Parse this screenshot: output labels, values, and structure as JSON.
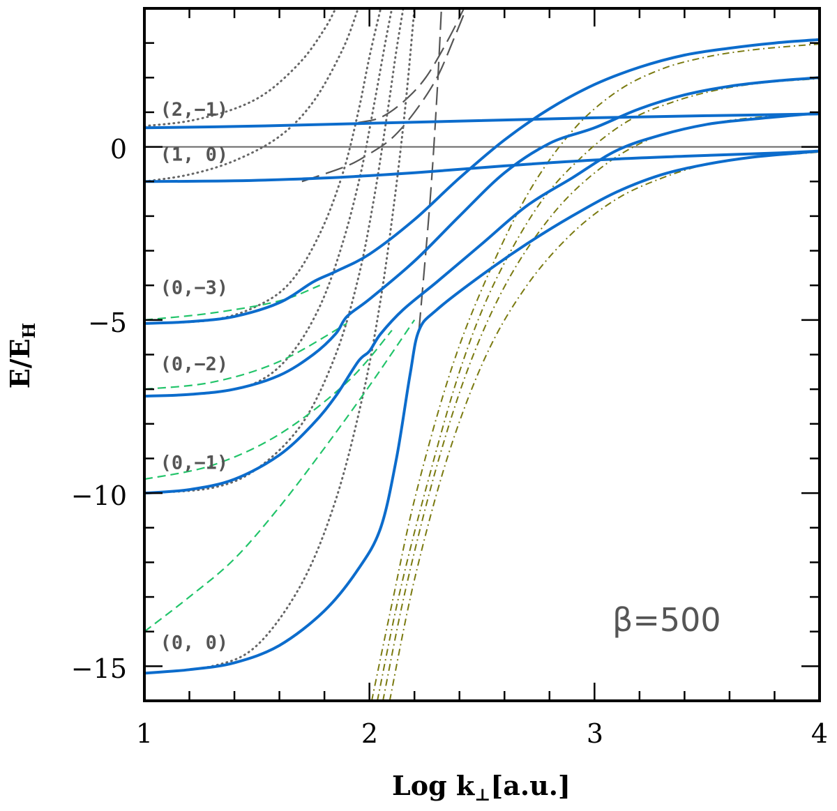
{
  "chart_data": {
    "type": "line",
    "title": "",
    "xlabel": "Log k",
    "xlabel_sub": "⊥",
    "xlabel_unit": "[a.u.]",
    "ylabel": "E/E",
    "ylabel_sub": "H",
    "xlim": [
      1,
      4
    ],
    "ylim": [
      -16,
      4
    ],
    "x_ticks": [
      1,
      2,
      3,
      4
    ],
    "x_tick_labels": [
      "1",
      "2",
      "3",
      "4"
    ],
    "y_ticks": [
      -15,
      -10,
      -5,
      0
    ],
    "y_tick_labels": [
      "−15",
      "−10",
      "−5",
      "0"
    ],
    "annotation": "β=500",
    "state_labels": [
      {
        "text": "(2,−1)",
        "x": 1.07,
        "y": 0.9
      },
      {
        "text": "(1, 0)",
        "x": 1.07,
        "y": -0.4
      },
      {
        "text": "(0,−3)",
        "x": 1.07,
        "y": -4.25
      },
      {
        "text": "(0,−2)",
        "x": 1.07,
        "y": -6.45
      },
      {
        "text": "(0,−1)",
        "x": 1.07,
        "y": -9.3
      },
      {
        "text": "(0, 0)",
        "x": 1.07,
        "y": -14.5
      }
    ],
    "colors": {
      "solid": "#0c6ccc",
      "green": "#22c46a",
      "dotted": "#666666",
      "dashed": "#555555",
      "dashdot": "#7a7a10",
      "zero_line": "#666666"
    },
    "series": [
      {
        "name": "blue-solid-1",
        "style": "solid",
        "x": [
          1,
          1.5,
          2,
          2.5,
          3,
          3.5,
          4
        ],
        "y": [
          0.55,
          0.6,
          0.68,
          0.76,
          0.84,
          0.9,
          0.95
        ]
      },
      {
        "name": "blue-solid-2",
        "style": "solid",
        "x": [
          1,
          1.4,
          1.8,
          2.2,
          2.6,
          3,
          3.4,
          3.8,
          4
        ],
        "y": [
          -1,
          -0.98,
          -0.9,
          -0.75,
          -0.55,
          -0.38,
          -0.27,
          -0.18,
          -0.12
        ]
      },
      {
        "name": "blue-solid-3",
        "style": "solid",
        "x": [
          1,
          1.2,
          1.4,
          1.6,
          1.75,
          1.85,
          2,
          2.2,
          2.4,
          2.6,
          2.8,
          3,
          3.2,
          3.4,
          3.6,
          3.8,
          4
        ],
        "y": [
          -5.1,
          -5.05,
          -4.9,
          -4.5,
          -3.9,
          -3.6,
          -3.1,
          -2.1,
          -0.9,
          0.2,
          1.1,
          1.8,
          2.3,
          2.65,
          2.85,
          3.0,
          3.1
        ]
      },
      {
        "name": "blue-solid-4",
        "style": "solid",
        "x": [
          1,
          1.2,
          1.4,
          1.6,
          1.75,
          1.85,
          1.9,
          2,
          2.2,
          2.4,
          2.6,
          2.8,
          3,
          3.2,
          3.4,
          3.6,
          3.8,
          4
        ],
        "y": [
          -7.2,
          -7.15,
          -7.0,
          -6.6,
          -6.0,
          -5.4,
          -4.9,
          -4.4,
          -3.3,
          -2.0,
          -0.75,
          0.1,
          0.55,
          1.1,
          1.5,
          1.75,
          1.9,
          2.0
        ]
      },
      {
        "name": "blue-solid-5",
        "style": "solid",
        "x": [
          1,
          1.2,
          1.4,
          1.6,
          1.75,
          1.85,
          1.95,
          2,
          2.05,
          2.15,
          2.3,
          2.5,
          2.7,
          2.9,
          3.1,
          3.3,
          3.5,
          3.7,
          3.9,
          4
        ],
        "y": [
          -10,
          -9.9,
          -9.6,
          -8.9,
          -8.0,
          -7.2,
          -6.2,
          -5.9,
          -5.4,
          -4.7,
          -3.9,
          -2.8,
          -1.7,
          -0.9,
          -0.1,
          0.35,
          0.65,
          0.8,
          0.92,
          0.98
        ]
      },
      {
        "name": "blue-solid-6",
        "style": "solid",
        "x": [
          1,
          1.2,
          1.4,
          1.6,
          1.8,
          1.95,
          2.05,
          2.12,
          2.18,
          2.22,
          2.3,
          2.5,
          2.7,
          2.9,
          3.1,
          3.3,
          3.5,
          3.7,
          3.9,
          4
        ],
        "y": [
          -15.2,
          -15.1,
          -14.9,
          -14.4,
          -13.4,
          -12.2,
          -11.0,
          -9.0,
          -6.6,
          -5.3,
          -4.7,
          -3.7,
          -2.8,
          -2.0,
          -1.3,
          -0.8,
          -0.5,
          -0.3,
          -0.18,
          -0.12
        ]
      },
      {
        "name": "green-dashed-1",
        "style": "green",
        "x": [
          1,
          1.3,
          1.6,
          1.78
        ],
        "y": [
          -5.0,
          -4.8,
          -4.45,
          -4.0
        ]
      },
      {
        "name": "green-dashed-2",
        "style": "green",
        "x": [
          1,
          1.3,
          1.6,
          1.9
        ],
        "y": [
          -7.0,
          -6.8,
          -6.2,
          -5.1
        ]
      },
      {
        "name": "green-dashed-3",
        "style": "green",
        "x": [
          1,
          1.3,
          1.6,
          1.9,
          2.1
        ],
        "y": [
          -9.6,
          -9.2,
          -8.3,
          -6.8,
          -5.3
        ]
      },
      {
        "name": "green-dashed-4",
        "style": "green",
        "x": [
          1,
          1.2,
          1.4,
          1.6,
          1.8,
          2.0,
          2.2
        ],
        "y": [
          -14.0,
          -13.0,
          -11.9,
          -10.4,
          -8.7,
          -6.9,
          -5.0
        ]
      },
      {
        "name": "dotted-1",
        "style": "dotted",
        "x": [
          1,
          1.2,
          1.4,
          1.55,
          1.7,
          1.8,
          1.85
        ],
        "y": [
          0.6,
          0.75,
          1.1,
          1.6,
          2.5,
          3.4,
          4.0
        ]
      },
      {
        "name": "dotted-2",
        "style": "dotted",
        "x": [
          1,
          1.2,
          1.4,
          1.6,
          1.75,
          1.88,
          1.95
        ],
        "y": [
          -1.0,
          -0.8,
          -0.4,
          0.3,
          1.3,
          2.8,
          4.0
        ]
      },
      {
        "name": "dotted-3",
        "style": "dotted",
        "x": [
          1,
          1.3,
          1.5,
          1.65,
          1.78,
          1.88,
          1.95,
          2.0,
          2.05
        ],
        "y": [
          -5.1,
          -5.0,
          -4.6,
          -3.9,
          -2.5,
          -0.8,
          1.0,
          2.6,
          4.0
        ]
      },
      {
        "name": "dotted-4",
        "style": "dotted",
        "x": [
          1,
          1.3,
          1.5,
          1.65,
          1.78,
          1.88,
          1.96,
          2.02,
          2.07,
          2.1
        ],
        "y": [
          -7.2,
          -7.1,
          -6.8,
          -6.0,
          -4.6,
          -2.8,
          -0.8,
          1.2,
          3.0,
          4.0
        ]
      },
      {
        "name": "dotted-5",
        "style": "dotted",
        "x": [
          1,
          1.3,
          1.5,
          1.7,
          1.85,
          1.95,
          2.02,
          2.08,
          2.12,
          2.15
        ],
        "y": [
          -10.0,
          -9.85,
          -9.3,
          -8.0,
          -6.0,
          -3.8,
          -1.5,
          1.0,
          2.8,
          4.0
        ]
      },
      {
        "name": "dotted-6",
        "style": "dotted",
        "x": [
          1,
          1.3,
          1.5,
          1.7,
          1.85,
          1.97,
          2.05,
          2.11,
          2.16,
          2.2
        ],
        "y": [
          -15.2,
          -15.0,
          -14.4,
          -12.6,
          -10.2,
          -7.2,
          -4.4,
          -1.6,
          1.2,
          4.0
        ]
      },
      {
        "name": "dashed-1",
        "style": "dashed",
        "x": [
          1.95,
          2.05,
          2.15,
          2.25,
          2.35,
          2.42
        ],
        "y": [
          0.7,
          0.85,
          1.3,
          2.0,
          3.1,
          4.0
        ]
      },
      {
        "name": "dashed-2",
        "style": "dashed",
        "x": [
          1.7,
          1.9,
          2.0,
          2.1,
          2.2,
          2.3,
          2.38,
          2.43
        ],
        "y": [
          -1.0,
          -0.55,
          -0.2,
          0.25,
          1.0,
          2.0,
          3.2,
          4.0
        ]
      },
      {
        "name": "dashed-3",
        "style": "dashed",
        "x": [
          2.22,
          2.27,
          2.3,
          2.32
        ],
        "y": [
          -5.3,
          -1.5,
          1.5,
          4.0
        ]
      },
      {
        "name": "dashdot-1",
        "style": "dashdot",
        "x": [
          2.01,
          2.1,
          2.2,
          2.35,
          2.5,
          2.7,
          2.9,
          3.1,
          3.3,
          3.5,
          3.7,
          3.9,
          4
        ],
        "y": [
          -16,
          -13.2,
          -10.2,
          -6.7,
          -4.1,
          -1.4,
          0.45,
          1.6,
          2.25,
          2.6,
          2.8,
          2.92,
          2.97
        ]
      },
      {
        "name": "dashdot-2",
        "style": "dashdot",
        "x": [
          2.035,
          2.13,
          2.25,
          2.4,
          2.55,
          2.75,
          2.95,
          3.15,
          3.35,
          3.55,
          3.75,
          3.95,
          4
        ],
        "y": [
          -16,
          -13.0,
          -9.9,
          -6.5,
          -4.0,
          -1.7,
          -0.25,
          0.75,
          1.3,
          1.65,
          1.85,
          1.95,
          1.97
        ]
      },
      {
        "name": "dashdot-3",
        "style": "dashdot",
        "x": [
          2.06,
          2.16,
          2.3,
          2.45,
          2.62,
          2.82,
          3.02,
          3.22,
          3.42,
          3.62,
          3.82,
          4
        ],
        "y": [
          -16,
          -12.8,
          -9.2,
          -6.2,
          -3.8,
          -1.9,
          -0.65,
          0.15,
          0.55,
          0.78,
          0.9,
          0.95
        ]
      },
      {
        "name": "dashdot-4",
        "style": "dashdot",
        "x": [
          2.09,
          2.2,
          2.35,
          2.52,
          2.7,
          2.9,
          3.1,
          3.3,
          3.5,
          3.7,
          3.9,
          4
        ],
        "y": [
          -16,
          -12.5,
          -8.9,
          -6.0,
          -4.0,
          -2.5,
          -1.5,
          -0.9,
          -0.5,
          -0.3,
          -0.2,
          -0.15
        ]
      }
    ]
  }
}
